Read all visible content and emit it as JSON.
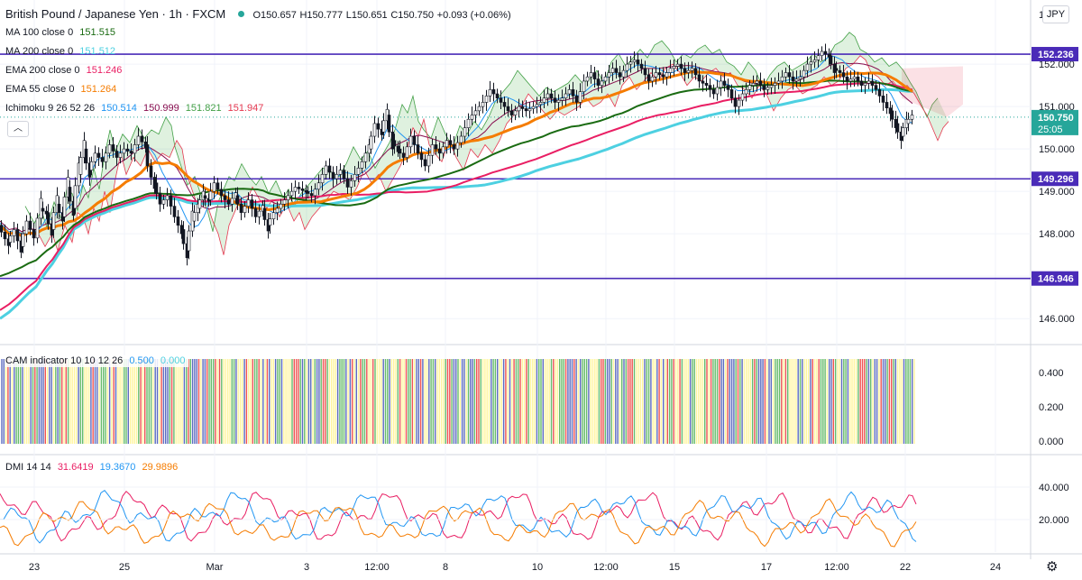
{
  "header": {
    "symbol": "British Pound / Japanese Yen · 1h · FXCM",
    "open": "O150.657",
    "high": "H150.777",
    "low": "L150.651",
    "close": "C150.750",
    "change": "+0.093 (+0.06%)"
  },
  "indicators": {
    "ma100": {
      "label": "MA 100 close 0",
      "value": "151.515",
      "color": "#1a6b12"
    },
    "ma200": {
      "label": "MA 200 close 0",
      "value": "151.512",
      "color": "#4dd0e1"
    },
    "ema200": {
      "label": "EMA 200 close 0",
      "value": "151.246",
      "color": "#e91e63"
    },
    "ema55": {
      "label": "EMA 55 close 0",
      "value": "151.264",
      "color": "#f57c00"
    },
    "ichimoku": {
      "label": "Ichimoku 9 26 52 26",
      "v1": "150.514",
      "v2": "150.999",
      "v3": "151.821",
      "v4": "151.947",
      "c1": "#2196f3",
      "c2": "#880e4f",
      "c3": "#43a047",
      "c4": "#e53950"
    }
  },
  "cam": {
    "label": "CAM indicator 10 10 12 26",
    "v1": "0.500",
    "v2": "0.000"
  },
  "dmi": {
    "label": "DMI 14 14",
    "v1": "31.6419",
    "v2": "19.3670",
    "v3": "29.9896",
    "c1": "#e91e63",
    "c2": "#2196f3",
    "c3": "#f57c00"
  },
  "currency": "JPY",
  "collapse_icon": "chevron-up-icon",
  "settings_icon": "gear-icon",
  "chart_data": {
    "type": "candlestick",
    "price_axis": {
      "ticks": [
        "146.000",
        "147.000",
        "148.000",
        "149.000",
        "150.000",
        "151.000",
        "152.000"
      ],
      "ylim": [
        145.6,
        153.3
      ]
    },
    "horizontal_levels": [
      {
        "value": 152.236,
        "label": "152.236",
        "color": "#4a2bb8"
      },
      {
        "value": 149.296,
        "label": "149.296",
        "color": "#4a2bb8"
      },
      {
        "value": 146.946,
        "label": "146.946",
        "color": "#4a2bb8"
      }
    ],
    "last_price": {
      "value": 150.75,
      "label": "150.750",
      "countdown": "25:05",
      "color": "#26a69a"
    },
    "x_ticks": [
      "23",
      "25",
      "Mar",
      "3",
      "12:00",
      "8",
      "10",
      "12:00",
      "15",
      "17",
      "12:00",
      "22",
      "24"
    ],
    "close_path": [
      [
        0,
        148.2
      ],
      [
        10,
        147.8
      ],
      [
        18,
        148.1
      ],
      [
        24,
        147.7
      ],
      [
        32,
        148.3
      ],
      [
        40,
        147.9
      ],
      [
        46,
        148.6
      ],
      [
        52,
        148.5
      ],
      [
        58,
        148.1
      ],
      [
        64,
        148.7
      ],
      [
        70,
        148.4
      ],
      [
        76,
        149.1
      ],
      [
        82,
        148.6
      ],
      [
        88,
        149.4
      ],
      [
        94,
        150.0
      ],
      [
        100,
        149.5
      ],
      [
        108,
        149.9
      ],
      [
        116,
        149.7
      ],
      [
        124,
        150.1
      ],
      [
        132,
        149.8
      ],
      [
        140,
        150.0
      ],
      [
        148,
        149.9
      ],
      [
        156,
        150.3
      ],
      [
        162,
        150.1
      ],
      [
        166,
        149.6
      ],
      [
        172,
        149.2
      ],
      [
        180,
        148.7
      ],
      [
        188,
        148.9
      ],
      [
        196,
        148.4
      ],
      [
        202,
        148.1
      ],
      [
        208,
        147.6
      ],
      [
        214,
        148.3
      ],
      [
        220,
        148.6
      ],
      [
        226,
        148.9
      ],
      [
        232,
        148.8
      ],
      [
        240,
        149.2
      ],
      [
        248,
        148.9
      ],
      [
        256,
        148.7
      ],
      [
        262,
        148.9
      ],
      [
        270,
        148.5
      ],
      [
        278,
        148.8
      ],
      [
        286,
        148.4
      ],
      [
        292,
        148.6
      ],
      [
        298,
        148.2
      ],
      [
        306,
        148.5
      ],
      [
        314,
        148.7
      ],
      [
        322,
        148.9
      ],
      [
        330,
        149.1
      ],
      [
        340,
        149.0
      ],
      [
        348,
        148.9
      ],
      [
        356,
        149.2
      ],
      [
        364,
        149.6
      ],
      [
        372,
        149.3
      ],
      [
        380,
        149.5
      ],
      [
        388,
        149.1
      ],
      [
        396,
        149.4
      ],
      [
        404,
        149.7
      ],
      [
        410,
        150.0
      ],
      [
        418,
        150.6
      ],
      [
        424,
        150.4
      ],
      [
        430,
        150.8
      ],
      [
        436,
        150.2
      ],
      [
        442,
        150.0
      ],
      [
        450,
        149.8
      ],
      [
        458,
        150.3
      ],
      [
        466,
        149.9
      ],
      [
        474,
        149.6
      ],
      [
        482,
        150.1
      ],
      [
        490,
        149.9
      ],
      [
        498,
        150.2
      ],
      [
        506,
        150.0
      ],
      [
        514,
        150.3
      ],
      [
        522,
        150.7
      ],
      [
        530,
        150.9
      ],
      [
        538,
        151.1
      ],
      [
        546,
        151.4
      ],
      [
        554,
        151.2
      ],
      [
        562,
        151.0
      ],
      [
        570,
        150.8
      ],
      [
        578,
        151.0
      ],
      [
        586,
        150.9
      ],
      [
        594,
        151.0
      ],
      [
        602,
        151.1
      ],
      [
        610,
        151.3
      ],
      [
        618,
        151.1
      ],
      [
        626,
        151.2
      ],
      [
        634,
        151.4
      ],
      [
        642,
        151.1
      ],
      [
        650,
        151.6
      ],
      [
        658,
        151.8
      ],
      [
        666,
        151.5
      ],
      [
        674,
        151.7
      ],
      [
        682,
        151.9
      ],
      [
        690,
        151.7
      ],
      [
        698,
        152.0
      ],
      [
        706,
        152.1
      ],
      [
        714,
        151.9
      ],
      [
        722,
        151.6
      ],
      [
        730,
        151.8
      ],
      [
        738,
        151.7
      ],
      [
        746,
        151.9
      ],
      [
        754,
        152.0
      ],
      [
        762,
        151.8
      ],
      [
        770,
        151.9
      ],
      [
        778,
        151.6
      ],
      [
        786,
        151.5
      ],
      [
        794,
        151.3
      ],
      [
        802,
        151.6
      ],
      [
        810,
        151.4
      ],
      [
        818,
        151.0
      ],
      [
        826,
        151.3
      ],
      [
        834,
        151.5
      ],
      [
        842,
        151.6
      ],
      [
        850,
        151.4
      ],
      [
        858,
        151.5
      ],
      [
        866,
        151.6
      ],
      [
        874,
        151.8
      ],
      [
        882,
        151.6
      ],
      [
        890,
        151.7
      ],
      [
        898,
        152.0
      ],
      [
        906,
        152.1
      ],
      [
        914,
        152.3
      ],
      [
        920,
        152.2
      ],
      [
        926,
        151.9
      ],
      [
        934,
        151.8
      ],
      [
        942,
        151.6
      ],
      [
        950,
        151.7
      ],
      [
        958,
        151.5
      ],
      [
        966,
        151.6
      ],
      [
        974,
        151.4
      ],
      [
        982,
        151.1
      ],
      [
        988,
        150.9
      ],
      [
        994,
        150.6
      ],
      [
        1000,
        150.3
      ],
      [
        1006,
        150.6
      ],
      [
        1012,
        150.75
      ]
    ]
  }
}
